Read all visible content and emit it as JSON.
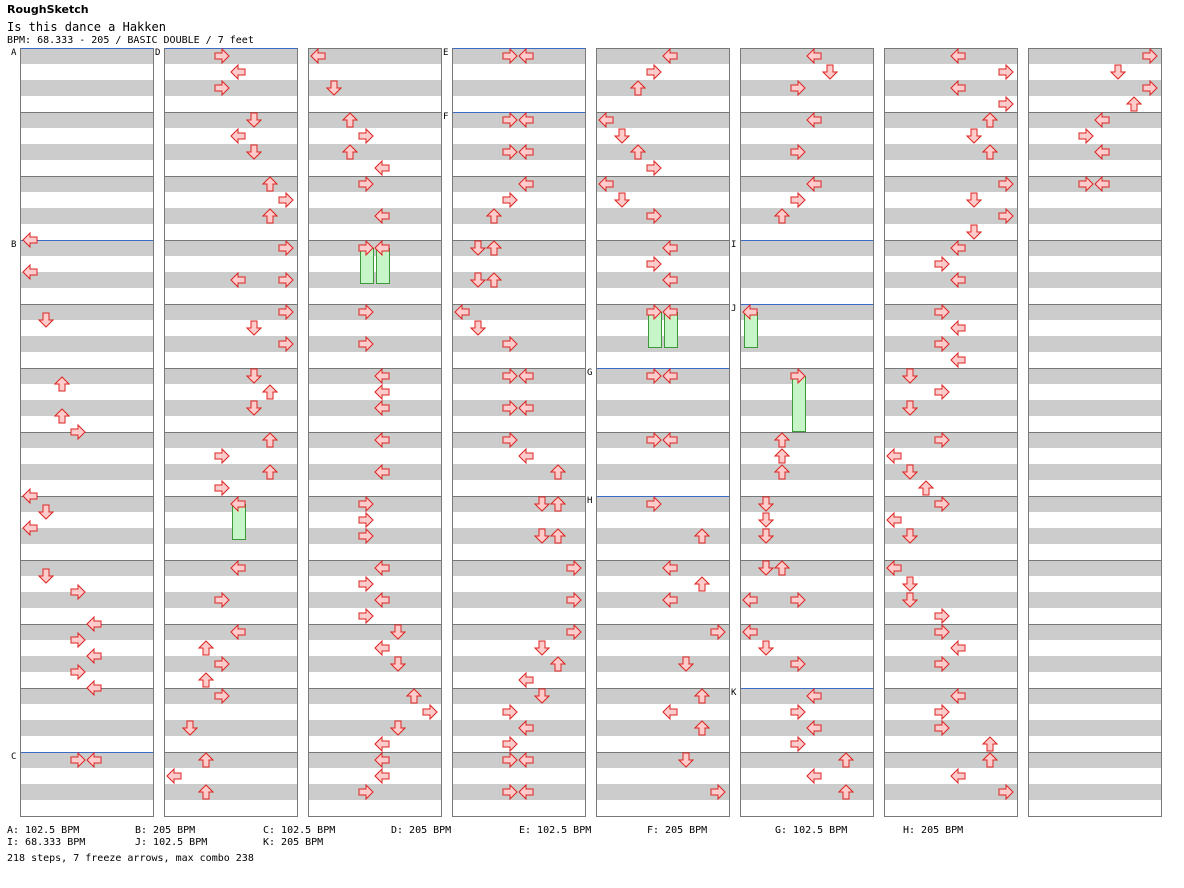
{
  "header": {
    "site": "RoughSketch",
    "song": "Is this dance a Hakken",
    "info": "BPM: 68.333 - 205 / BASIC DOUBLE / 7 feet"
  },
  "colors": {
    "arrow_fill": "#ffcccc",
    "arrow_stroke": "#dd2222",
    "freeze_fill": "#c8f5c8",
    "freeze_stroke": "#3a9a3a",
    "band": "#cccccc",
    "section_line": "#3b6bc4"
  },
  "icons": {
    "arrow": "arrow-icon",
    "freeze": "freeze-arrow-icon"
  },
  "chart": {
    "columns": 8,
    "measures_per_column": 12,
    "lanes": [
      "left-p1",
      "down-p1",
      "up-p1",
      "right-p1",
      "left-p2",
      "down-p2",
      "up-p2",
      "right-p2"
    ],
    "section_marks": [
      {
        "label": "A",
        "column": 0,
        "measure": 0
      },
      {
        "label": "B",
        "column": 0,
        "measure": 3
      },
      {
        "label": "C",
        "column": 0,
        "measure": 11
      },
      {
        "label": "D",
        "column": 1,
        "measure": 0
      },
      {
        "label": "E",
        "column": 3,
        "measure": 0
      },
      {
        "label": "F",
        "column": 3,
        "measure": 1
      },
      {
        "label": "G",
        "column": 4,
        "measure": 5
      },
      {
        "label": "H",
        "column": 4,
        "measure": 7
      },
      {
        "label": "I",
        "column": 5,
        "measure": 3
      },
      {
        "label": "J",
        "column": 5,
        "measure": 4
      },
      {
        "label": "K",
        "column": 5,
        "measure": 10
      }
    ],
    "notes": [
      [
        0,
        3,
        0,
        0
      ],
      [
        0,
        3,
        0.5,
        0
      ],
      [
        0,
        4,
        0.25,
        1
      ],
      [
        0,
        5,
        0.25,
        2
      ],
      [
        0,
        5,
        0.75,
        2
      ],
      [
        0,
        6,
        0,
        3
      ],
      [
        0,
        7,
        0,
        0
      ],
      [
        0,
        7,
        0.25,
        1
      ],
      [
        0,
        7,
        0.5,
        0
      ],
      [
        0,
        8,
        0.25,
        1
      ],
      [
        0,
        8,
        0.5,
        3
      ],
      [
        0,
        9,
        0,
        4
      ],
      [
        0,
        9,
        0.25,
        3
      ],
      [
        0,
        9,
        0.5,
        4
      ],
      [
        0,
        9,
        0.75,
        3
      ],
      [
        0,
        10,
        0,
        4
      ],
      [
        0,
        11,
        0.125,
        3
      ],
      [
        0,
        11,
        0.125,
        4
      ],
      [
        1,
        0,
        0.125,
        3
      ],
      [
        1,
        0,
        0.375,
        4
      ],
      [
        1,
        0,
        0.625,
        3
      ],
      [
        1,
        1,
        0.125,
        5
      ],
      [
        1,
        1,
        0.375,
        4
      ],
      [
        1,
        1,
        0.625,
        5
      ],
      [
        1,
        2,
        0.125,
        6
      ],
      [
        1,
        2,
        0.375,
        7
      ],
      [
        1,
        2,
        0.625,
        6
      ],
      [
        1,
        3,
        0.125,
        7
      ],
      [
        1,
        3,
        0.625,
        4
      ],
      [
        1,
        3,
        0.625,
        7
      ],
      [
        1,
        4,
        0.125,
        7
      ],
      [
        1,
        4,
        0.375,
        5
      ],
      [
        1,
        4,
        0.625,
        7
      ],
      [
        1,
        5,
        0.125,
        5
      ],
      [
        1,
        5,
        0.375,
        6
      ],
      [
        1,
        5,
        0.625,
        5
      ],
      [
        1,
        6,
        0.125,
        6
      ],
      [
        1,
        6,
        0.375,
        3
      ],
      [
        1,
        6,
        0.625,
        6
      ],
      [
        1,
        6,
        0.875,
        3
      ],
      [
        1,
        7,
        0.125,
        4
      ],
      [
        1,
        8,
        0.125,
        4
      ],
      [
        1,
        8,
        0.625,
        3
      ],
      [
        1,
        9,
        0.125,
        4
      ],
      [
        1,
        9,
        0.375,
        2
      ],
      [
        1,
        9,
        0.625,
        3
      ],
      [
        1,
        9,
        0.875,
        2
      ],
      [
        1,
        10,
        0.125,
        3
      ],
      [
        1,
        10,
        0.625,
        1
      ],
      [
        1,
        11,
        0.125,
        2
      ],
      [
        1,
        11,
        0.375,
        0
      ],
      [
        1,
        11,
        0.625,
        2
      ],
      [
        2,
        0,
        0.125,
        0
      ],
      [
        2,
        0,
        0.625,
        1
      ],
      [
        2,
        1,
        0.125,
        2
      ],
      [
        2,
        1,
        0.375,
        3
      ],
      [
        2,
        1,
        0.625,
        2
      ],
      [
        2,
        1,
        0.875,
        4
      ],
      [
        2,
        2,
        0.125,
        3
      ],
      [
        2,
        2,
        0.625,
        4
      ],
      [
        2,
        3,
        0.125,
        3
      ],
      [
        2,
        3,
        0.125,
        4
      ],
      [
        2,
        4,
        0.125,
        3
      ],
      [
        2,
        4,
        0.625,
        3
      ],
      [
        2,
        5,
        0.125,
        4
      ],
      [
        2,
        5,
        0.375,
        4
      ],
      [
        2,
        5,
        0.625,
        4
      ],
      [
        2,
        6,
        0.125,
        4
      ],
      [
        2,
        6,
        0.625,
        4
      ],
      [
        2,
        7,
        0.125,
        3
      ],
      [
        2,
        7,
        0.375,
        3
      ],
      [
        2,
        7,
        0.625,
        3
      ],
      [
        2,
        8,
        0.125,
        4
      ],
      [
        2,
        8,
        0.375,
        3
      ],
      [
        2,
        8,
        0.625,
        4
      ],
      [
        2,
        8,
        0.875,
        3
      ],
      [
        2,
        9,
        0.125,
        5
      ],
      [
        2,
        9,
        0.375,
        4
      ],
      [
        2,
        9,
        0.625,
        5
      ],
      [
        2,
        10,
        0.125,
        6
      ],
      [
        2,
        10,
        0.375,
        7
      ],
      [
        2,
        10,
        0.625,
        5
      ],
      [
        2,
        10,
        0.875,
        4
      ],
      [
        2,
        11,
        0.125,
        4
      ],
      [
        2,
        11,
        0.375,
        4
      ],
      [
        2,
        11,
        0.625,
        3
      ],
      [
        3,
        0,
        0.125,
        3
      ],
      [
        3,
        0,
        0.125,
        4
      ],
      [
        3,
        1,
        0.125,
        3
      ],
      [
        3,
        1,
        0.125,
        4
      ],
      [
        3,
        1,
        0.625,
        3
      ],
      [
        3,
        1,
        0.625,
        4
      ],
      [
        3,
        2,
        0.125,
        4
      ],
      [
        3,
        2,
        0.375,
        3
      ],
      [
        3,
        2,
        0.625,
        2
      ],
      [
        3,
        3,
        0.125,
        1
      ],
      [
        3,
        3,
        0.125,
        2
      ],
      [
        3,
        3,
        0.625,
        1
      ],
      [
        3,
        3,
        0.625,
        2
      ],
      [
        3,
        4,
        0.125,
        0
      ],
      [
        3,
        4,
        0.375,
        1
      ],
      [
        3,
        4,
        0.625,
        3
      ],
      [
        3,
        5,
        0.125,
        3
      ],
      [
        3,
        5,
        0.125,
        4
      ],
      [
        3,
        5,
        0.625,
        3
      ],
      [
        3,
        5,
        0.625,
        4
      ],
      [
        3,
        6,
        0.125,
        3
      ],
      [
        3,
        6,
        0.375,
        4
      ],
      [
        3,
        6,
        0.625,
        6
      ],
      [
        3,
        7,
        0.125,
        5
      ],
      [
        3,
        7,
        0.125,
        6
      ],
      [
        3,
        7,
        0.625,
        5
      ],
      [
        3,
        7,
        0.625,
        6
      ],
      [
        3,
        8,
        0.125,
        7
      ],
      [
        3,
        8,
        0.625,
        7
      ],
      [
        3,
        9,
        0.125,
        7
      ],
      [
        3,
        9,
        0.375,
        5
      ],
      [
        3,
        9,
        0.625,
        6
      ],
      [
        3,
        9,
        0.875,
        4
      ],
      [
        3,
        10,
        0.125,
        5
      ],
      [
        3,
        10,
        0.375,
        3
      ],
      [
        3,
        10,
        0.625,
        4
      ],
      [
        3,
        10,
        0.875,
        3
      ],
      [
        3,
        11,
        0.125,
        3
      ],
      [
        3,
        11,
        0.125,
        4
      ],
      [
        3,
        11,
        0.625,
        3
      ],
      [
        3,
        11,
        0.625,
        4
      ],
      [
        4,
        0,
        0.125,
        4
      ],
      [
        4,
        0,
        0.375,
        3
      ],
      [
        4,
        0,
        0.625,
        2
      ],
      [
        4,
        1,
        0.125,
        0
      ],
      [
        4,
        1,
        0.375,
        1
      ],
      [
        4,
        1,
        0.625,
        2
      ],
      [
        4,
        1,
        0.875,
        3
      ],
      [
        4,
        2,
        0.125,
        0
      ],
      [
        4,
        2,
        0.375,
        1
      ],
      [
        4,
        2,
        0.625,
        3
      ],
      [
        4,
        3,
        0.125,
        4
      ],
      [
        4,
        3,
        0.375,
        3
      ],
      [
        4,
        3,
        0.625,
        4
      ],
      [
        4,
        4,
        0.125,
        3
      ],
      [
        4,
        4,
        0.125,
        4
      ],
      [
        4,
        5,
        0.125,
        3
      ],
      [
        4,
        5,
        0.125,
        4
      ],
      [
        4,
        6,
        0.125,
        3
      ],
      [
        4,
        6,
        0.125,
        4
      ],
      [
        4,
        7,
        0.125,
        3
      ],
      [
        4,
        7,
        0.625,
        6
      ],
      [
        4,
        8,
        0.125,
        4
      ],
      [
        4,
        8,
        0.375,
        6
      ],
      [
        4,
        8,
        0.625,
        4
      ],
      [
        4,
        9,
        0.125,
        7
      ],
      [
        4,
        9,
        0.625,
        5
      ],
      [
        4,
        10,
        0.125,
        6
      ],
      [
        4,
        10,
        0.375,
        4
      ],
      [
        4,
        10,
        0.625,
        6
      ],
      [
        4,
        11,
        0.125,
        5
      ],
      [
        4,
        11,
        0.625,
        7
      ],
      [
        5,
        0,
        0.125,
        4
      ],
      [
        5,
        0,
        0.375,
        5
      ],
      [
        5,
        0,
        0.625,
        3
      ],
      [
        5,
        1,
        0.125,
        4
      ],
      [
        5,
        1,
        0.625,
        3
      ],
      [
        5,
        2,
        0.125,
        4
      ],
      [
        5,
        2,
        0.375,
        3
      ],
      [
        5,
        2,
        0.625,
        2
      ],
      [
        5,
        4,
        0.125,
        0
      ],
      [
        5,
        5,
        0.125,
        3
      ],
      [
        5,
        6,
        0.125,
        2
      ],
      [
        5,
        6,
        0.375,
        2
      ],
      [
        5,
        6,
        0.625,
        2
      ],
      [
        5,
        7,
        0.125,
        1
      ],
      [
        5,
        7,
        0.375,
        1
      ],
      [
        5,
        7,
        0.625,
        1
      ],
      [
        5,
        8,
        0.125,
        1
      ],
      [
        5,
        8,
        0.125,
        2
      ],
      [
        5,
        8,
        0.625,
        0
      ],
      [
        5,
        8,
        0.625,
        3
      ],
      [
        5,
        9,
        0.125,
        0
      ],
      [
        5,
        9,
        0.375,
        1
      ],
      [
        5,
        9,
        0.625,
        3
      ],
      [
        5,
        10,
        0.125,
        4
      ],
      [
        5,
        10,
        0.375,
        3
      ],
      [
        5,
        10,
        0.625,
        4
      ],
      [
        5,
        10,
        0.875,
        3
      ],
      [
        5,
        11,
        0.125,
        6
      ],
      [
        5,
        11,
        0.375,
        4
      ],
      [
        5,
        11,
        0.625,
        6
      ],
      [
        6,
        0,
        0.125,
        4
      ],
      [
        6,
        0,
        0.375,
        7
      ],
      [
        6,
        0,
        0.625,
        4
      ],
      [
        6,
        0,
        0.875,
        7
      ],
      [
        6,
        1,
        0.125,
        6
      ],
      [
        6,
        1,
        0.375,
        5
      ],
      [
        6,
        1,
        0.625,
        6
      ],
      [
        6,
        2,
        0.125,
        7
      ],
      [
        6,
        2,
        0.375,
        5
      ],
      [
        6,
        2,
        0.625,
        7
      ],
      [
        6,
        2,
        0.875,
        5
      ],
      [
        6,
        3,
        0.125,
        4
      ],
      [
        6,
        3,
        0.375,
        3
      ],
      [
        6,
        3,
        0.625,
        4
      ],
      [
        6,
        4,
        0.125,
        3
      ],
      [
        6,
        4,
        0.375,
        4
      ],
      [
        6,
        4,
        0.625,
        3
      ],
      [
        6,
        4,
        0.875,
        4
      ],
      [
        6,
        5,
        0.125,
        1
      ],
      [
        6,
        5,
        0.375,
        3
      ],
      [
        6,
        5,
        0.625,
        1
      ],
      [
        6,
        6,
        0.125,
        3
      ],
      [
        6,
        6,
        0.375,
        0
      ],
      [
        6,
        6,
        0.625,
        1
      ],
      [
        6,
        6,
        0.875,
        2
      ],
      [
        6,
        7,
        0.125,
        3
      ],
      [
        6,
        7,
        0.375,
        0
      ],
      [
        6,
        7,
        0.625,
        1
      ],
      [
        6,
        8,
        0.125,
        0
      ],
      [
        6,
        8,
        0.375,
        1
      ],
      [
        6,
        8,
        0.625,
        1
      ],
      [
        6,
        8,
        0.875,
        3
      ],
      [
        6,
        9,
        0.125,
        3
      ],
      [
        6,
        9,
        0.375,
        4
      ],
      [
        6,
        9,
        0.625,
        3
      ],
      [
        6,
        10,
        0.125,
        4
      ],
      [
        6,
        10,
        0.375,
        3
      ],
      [
        6,
        10,
        0.625,
        3
      ],
      [
        6,
        10,
        0.875,
        6
      ],
      [
        6,
        11,
        0.125,
        6
      ],
      [
        6,
        11,
        0.375,
        4
      ],
      [
        6,
        11,
        0.625,
        7
      ],
      [
        7,
        0,
        0.125,
        7
      ],
      [
        7,
        0,
        0.375,
        5
      ],
      [
        7,
        0,
        0.625,
        7
      ],
      [
        7,
        0,
        0.875,
        6
      ],
      [
        7,
        1,
        0.125,
        4
      ],
      [
        7,
        1,
        0.375,
        3
      ],
      [
        7,
        1,
        0.625,
        4
      ],
      [
        7,
        2,
        0.125,
        3
      ],
      [
        7,
        2,
        0.125,
        4
      ]
    ],
    "freezes": [
      [
        1,
        7,
        0.125,
        0.125,
        4
      ],
      [
        2,
        3,
        0.125,
        0.125,
        3
      ],
      [
        2,
        3,
        0.125,
        0.125,
        4
      ],
      [
        4,
        4,
        0.125,
        0.125,
        3
      ],
      [
        4,
        4,
        0.125,
        0.125,
        4
      ],
      [
        5,
        4,
        0.125,
        0.125,
        0
      ],
      [
        5,
        5,
        0.125,
        0.25,
        3
      ]
    ]
  },
  "legend": [
    [
      "A: 102.5 BPM",
      "B: 205 BPM",
      "C: 102.5 BPM",
      "D: 205 BPM",
      "E: 102.5 BPM",
      "F: 205 BPM",
      "G: 102.5 BPM",
      "H: 205 BPM"
    ],
    [
      "I: 68.333 BPM",
      "J: 102.5 BPM",
      "K: 205 BPM"
    ]
  ],
  "footer": "218 steps, 7 freeze arrows, max combo 238"
}
